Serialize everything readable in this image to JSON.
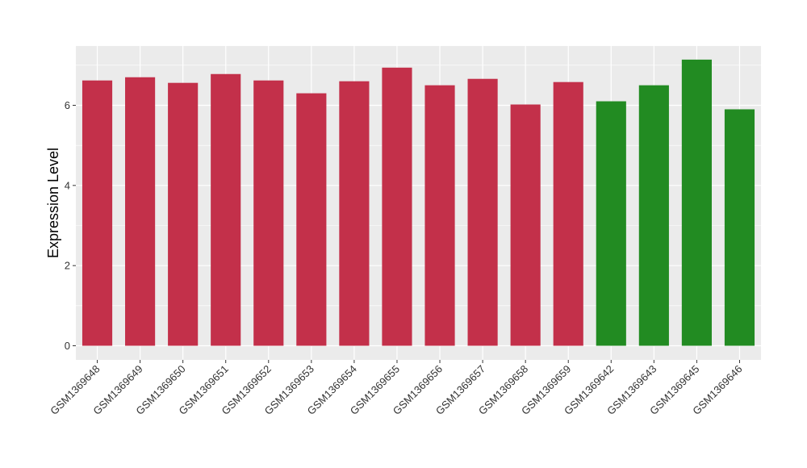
{
  "chart_data": {
    "type": "bar",
    "title": "",
    "xlabel": "",
    "ylabel": "Expression Level",
    "ylim": [
      0,
      7.5
    ],
    "yticks": [
      0,
      2,
      4,
      6
    ],
    "ytick_labels": [
      "0",
      "2",
      "4",
      "6"
    ],
    "grid": true,
    "categories": [
      "GSM1369648",
      "GSM1369649",
      "GSM1369650",
      "GSM1369651",
      "GSM1369652",
      "GSM1369653",
      "GSM1369654",
      "GSM1369655",
      "GSM1369656",
      "GSM1369657",
      "GSM1369658",
      "GSM1369659",
      "GSM1369642",
      "GSM1369643",
      "GSM1369645",
      "GSM1369646"
    ],
    "values": [
      6.62,
      6.7,
      6.56,
      6.78,
      6.62,
      6.3,
      6.6,
      6.94,
      6.5,
      6.66,
      6.02,
      6.58,
      6.1,
      6.5,
      7.14,
      5.9
    ],
    "bar_colors": [
      "#c3304a",
      "#c3304a",
      "#c3304a",
      "#c3304a",
      "#c3304a",
      "#c3304a",
      "#c3304a",
      "#c3304a",
      "#c3304a",
      "#c3304a",
      "#c3304a",
      "#c3304a",
      "#228b22",
      "#228b22",
      "#228b22",
      "#228b22"
    ],
    "panel_background": "#ebebeb",
    "grid_color": "#ffffff"
  }
}
